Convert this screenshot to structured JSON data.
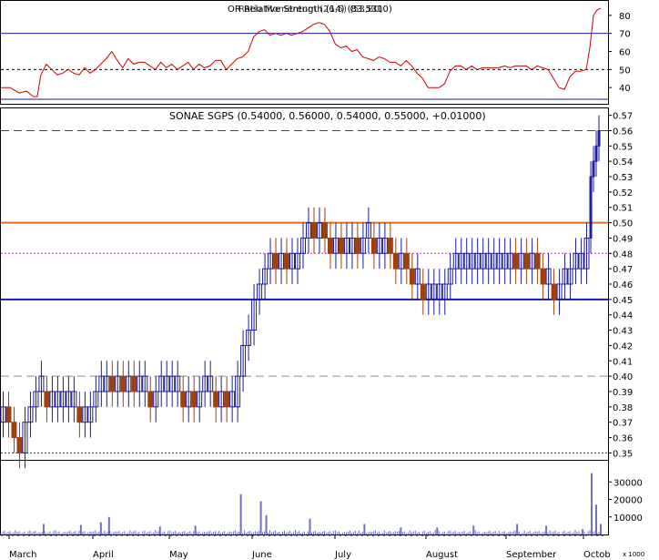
{
  "colors": {
    "frame": "#000000",
    "rsi_line": "#cc0000",
    "rsi_band": "#1a1aa0",
    "up_bar": "#1a1aa0",
    "down_bar": "#a0400f",
    "resistance": "#e07020",
    "support": "#1a1aa0",
    "dash_grey": "#8c8c8c",
    "dash_dark_red": "#a02020",
    "dot_magenta": "#cc33cc",
    "volume": "#7070c0"
  },
  "panels": {
    "rsi": {
      "title_overlap_a": "OR Relative Strength (14) (83.5310)",
      "title_overlap_b": "Ratio Momentum (26,5) (53,80)",
      "ticks": [
        40,
        50,
        60,
        70,
        80
      ],
      "range": [
        31,
        88
      ],
      "band_upper": 70,
      "band_lower": 50
    },
    "price": {
      "title": "SONAE SGPS (0.54000, 0.56000, 0.54000, 0.55000, +0.01000)",
      "ticks": [
        "0.35",
        "0.36",
        "0.37",
        "0.38",
        "0.39",
        "0.40",
        "0.41",
        "0.42",
        "0.43",
        "0.44",
        "0.45",
        "0.46",
        "0.47",
        "0.48",
        "0.49",
        "0.50",
        "0.51",
        "0.52",
        "0.53",
        "0.54",
        "0.55",
        "0.56",
        "0.57"
      ],
      "range": [
        0.3455,
        0.5745
      ],
      "lines": {
        "resistance": 0.5,
        "support": 0.45,
        "dashed_top": 0.56,
        "dashed_40": 0.4,
        "dotted_48": 0.48,
        "dotted_35": 0.35
      }
    },
    "volume": {
      "ticks": [
        "10000",
        "20000",
        "30000"
      ],
      "range": [
        0,
        40000
      ],
      "unit_label": "x 1000"
    }
  },
  "months": [
    "March",
    "April",
    "May",
    "June",
    "July",
    "August",
    "September",
    "Octob"
  ],
  "chart_data": {
    "type": "ohlc",
    "title": "SONAE SGPS (0.54000, 0.56000, 0.54000, 0.55000, +0.01000)",
    "x_axis_months": [
      "March",
      "April",
      "May",
      "June",
      "July",
      "August",
      "September",
      "Octob"
    ],
    "price_ylim": [
      0.35,
      0.57
    ],
    "price_close_path": [
      [
        0,
        0.37
      ],
      [
        6,
        0.38
      ],
      [
        12,
        0.37
      ],
      [
        18,
        0.36
      ],
      [
        24,
        0.35
      ],
      [
        30,
        0.37
      ],
      [
        36,
        0.38
      ],
      [
        42,
        0.39
      ],
      [
        48,
        0.39
      ],
      [
        54,
        0.38
      ],
      [
        60,
        0.38
      ],
      [
        66,
        0.38
      ],
      [
        72,
        0.38
      ],
      [
        78,
        0.38
      ],
      [
        84,
        0.38
      ],
      [
        90,
        0.37
      ],
      [
        96,
        0.37
      ],
      [
        102,
        0.38
      ],
      [
        108,
        0.39
      ],
      [
        114,
        0.39
      ],
      [
        120,
        0.4
      ],
      [
        126,
        0.39
      ],
      [
        132,
        0.4
      ],
      [
        138,
        0.39
      ],
      [
        144,
        0.4
      ],
      [
        150,
        0.39
      ],
      [
        156,
        0.39
      ],
      [
        162,
        0.39
      ],
      [
        168,
        0.38
      ],
      [
        174,
        0.39
      ],
      [
        180,
        0.39
      ],
      [
        186,
        0.39
      ],
      [
        192,
        0.39
      ],
      [
        198,
        0.39
      ],
      [
        204,
        0.38
      ],
      [
        210,
        0.39
      ],
      [
        216,
        0.38
      ],
      [
        222,
        0.39
      ],
      [
        228,
        0.39
      ],
      [
        234,
        0.39
      ],
      [
        240,
        0.38
      ],
      [
        246,
        0.39
      ],
      [
        252,
        0.38
      ],
      [
        258,
        0.38
      ],
      [
        264,
        0.4
      ],
      [
        270,
        0.42
      ],
      [
        276,
        0.43
      ],
      [
        282,
        0.45
      ],
      [
        288,
        0.46
      ],
      [
        294,
        0.47
      ],
      [
        300,
        0.48
      ],
      [
        306,
        0.47
      ],
      [
        312,
        0.48
      ],
      [
        318,
        0.47
      ],
      [
        324,
        0.47
      ],
      [
        330,
        0.48
      ],
      [
        336,
        0.49
      ],
      [
        342,
        0.5
      ],
      [
        348,
        0.49
      ],
      [
        354,
        0.5
      ],
      [
        360,
        0.49
      ],
      [
        366,
        0.48
      ],
      [
        372,
        0.49
      ],
      [
        378,
        0.48
      ],
      [
        384,
        0.48
      ],
      [
        390,
        0.49
      ],
      [
        396,
        0.48
      ],
      [
        402,
        0.49
      ],
      [
        408,
        0.49
      ],
      [
        414,
        0.48
      ],
      [
        420,
        0.48
      ],
      [
        426,
        0.49
      ],
      [
        432,
        0.48
      ],
      [
        438,
        0.47
      ],
      [
        444,
        0.48
      ],
      [
        450,
        0.47
      ],
      [
        456,
        0.46
      ],
      [
        462,
        0.46
      ],
      [
        468,
        0.45
      ],
      [
        474,
        0.45
      ],
      [
        480,
        0.45
      ],
      [
        486,
        0.45
      ],
      [
        492,
        0.46
      ],
      [
        498,
        0.47
      ],
      [
        504,
        0.47
      ],
      [
        510,
        0.47
      ],
      [
        516,
        0.47
      ],
      [
        522,
        0.47
      ],
      [
        528,
        0.47
      ],
      [
        534,
        0.47
      ],
      [
        540,
        0.47
      ],
      [
        546,
        0.47
      ],
      [
        552,
        0.47
      ],
      [
        558,
        0.47
      ],
      [
        564,
        0.48
      ],
      [
        570,
        0.47
      ],
      [
        576,
        0.48
      ],
      [
        582,
        0.47
      ],
      [
        588,
        0.48
      ],
      [
        594,
        0.47
      ],
      [
        600,
        0.46
      ],
      [
        606,
        0.46
      ],
      [
        612,
        0.45
      ],
      [
        618,
        0.46
      ],
      [
        624,
        0.46
      ],
      [
        630,
        0.47
      ],
      [
        636,
        0.47
      ],
      [
        642,
        0.47
      ],
      [
        648,
        0.49
      ],
      [
        651,
        0.53
      ],
      [
        654,
        0.54
      ],
      [
        657,
        0.55
      ],
      [
        660,
        0.55
      ]
    ],
    "rsi_path": [
      [
        0,
        40
      ],
      [
        10,
        40
      ],
      [
        20,
        37
      ],
      [
        28,
        38
      ],
      [
        36,
        35
      ],
      [
        40,
        35
      ],
      [
        44,
        47
      ],
      [
        50,
        53
      ],
      [
        56,
        50
      ],
      [
        62,
        47
      ],
      [
        68,
        48
      ],
      [
        74,
        50
      ],
      [
        80,
        48
      ],
      [
        86,
        47
      ],
      [
        92,
        51
      ],
      [
        98,
        48
      ],
      [
        104,
        50
      ],
      [
        110,
        53
      ],
      [
        116,
        56
      ],
      [
        122,
        60
      ],
      [
        128,
        55
      ],
      [
        134,
        51
      ],
      [
        140,
        56
      ],
      [
        146,
        53
      ],
      [
        152,
        54
      ],
      [
        158,
        54
      ],
      [
        164,
        52
      ],
      [
        170,
        50
      ],
      [
        176,
        54
      ],
      [
        182,
        51
      ],
      [
        188,
        53
      ],
      [
        194,
        50
      ],
      [
        200,
        52
      ],
      [
        206,
        54
      ],
      [
        212,
        50
      ],
      [
        218,
        53
      ],
      [
        224,
        51
      ],
      [
        230,
        52
      ],
      [
        236,
        55
      ],
      [
        242,
        55
      ],
      [
        248,
        50
      ],
      [
        254,
        53
      ],
      [
        260,
        56
      ],
      [
        266,
        57
      ],
      [
        272,
        60
      ],
      [
        278,
        68
      ],
      [
        284,
        71
      ],
      [
        290,
        72
      ],
      [
        296,
        69
      ],
      [
        302,
        70
      ],
      [
        308,
        69
      ],
      [
        314,
        70
      ],
      [
        320,
        69
      ],
      [
        326,
        70
      ],
      [
        332,
        71
      ],
      [
        338,
        73
      ],
      [
        344,
        75
      ],
      [
        350,
        76
      ],
      [
        356,
        75
      ],
      [
        362,
        71
      ],
      [
        368,
        64
      ],
      [
        374,
        62
      ],
      [
        380,
        63
      ],
      [
        386,
        60
      ],
      [
        392,
        61
      ],
      [
        398,
        57
      ],
      [
        404,
        56
      ],
      [
        410,
        55
      ],
      [
        416,
        57
      ],
      [
        422,
        56
      ],
      [
        428,
        54
      ],
      [
        434,
        54
      ],
      [
        440,
        52
      ],
      [
        446,
        55
      ],
      [
        452,
        52
      ],
      [
        458,
        48
      ],
      [
        464,
        45
      ],
      [
        470,
        40
      ],
      [
        476,
        40
      ],
      [
        482,
        40
      ],
      [
        488,
        42
      ],
      [
        494,
        49
      ],
      [
        500,
        52
      ],
      [
        506,
        52
      ],
      [
        512,
        50
      ],
      [
        518,
        52
      ],
      [
        524,
        50
      ],
      [
        530,
        51
      ],
      [
        536,
        51
      ],
      [
        542,
        51
      ],
      [
        548,
        51
      ],
      [
        554,
        52
      ],
      [
        560,
        51
      ],
      [
        566,
        52
      ],
      [
        572,
        52
      ],
      [
        578,
        52
      ],
      [
        584,
        50
      ],
      [
        590,
        52
      ],
      [
        596,
        51
      ],
      [
        602,
        50
      ],
      [
        608,
        45
      ],
      [
        614,
        40
      ],
      [
        620,
        39
      ],
      [
        626,
        46
      ],
      [
        632,
        49
      ],
      [
        638,
        49
      ],
      [
        644,
        50
      ],
      [
        648,
        62
      ],
      [
        652,
        80
      ],
      [
        656,
        83
      ],
      [
        660,
        84
      ]
    ],
    "rsi_ylim": [
      31,
      88
    ],
    "volume_spikes": [
      [
        264,
        23000
      ],
      [
        286,
        19000
      ],
      [
        292,
        11000
      ],
      [
        340,
        9000
      ],
      [
        119,
        10000
      ],
      [
        47,
        6000
      ],
      [
        88,
        5500
      ],
      [
        110,
        7000
      ],
      [
        175,
        4500
      ],
      [
        214,
        5000
      ],
      [
        400,
        6000
      ],
      [
        440,
        4000
      ],
      [
        480,
        4000
      ],
      [
        520,
        5000
      ],
      [
        568,
        6000
      ],
      [
        600,
        5000
      ],
      [
        640,
        3000
      ],
      [
        650,
        35000
      ],
      [
        655,
        17000
      ],
      [
        660,
        6000
      ]
    ],
    "volume_ylim": [
      0,
      40000
    ]
  }
}
